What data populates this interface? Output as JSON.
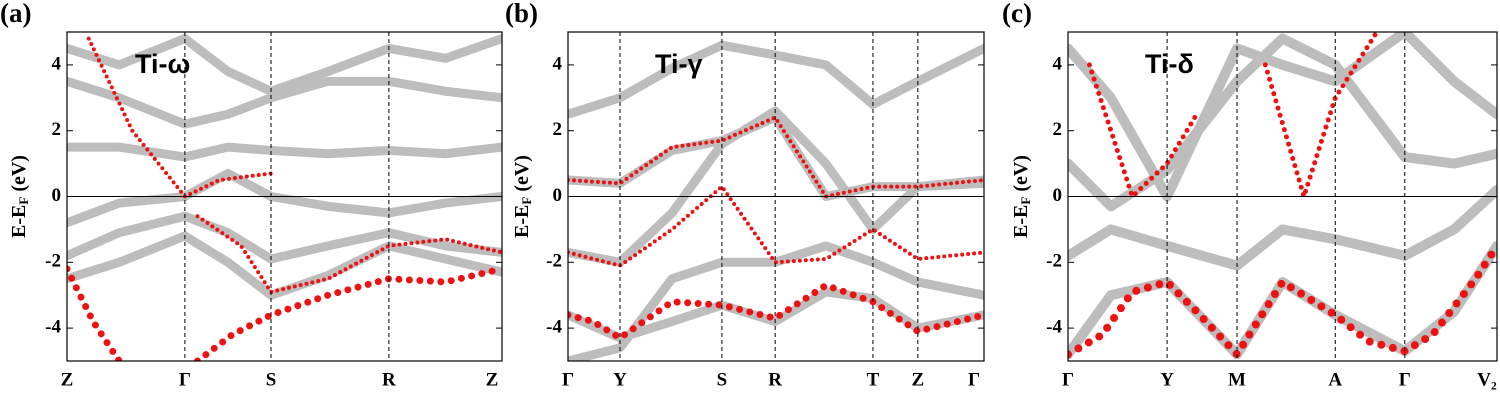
{
  "chart_data": [
    {
      "type": "line",
      "panel_label": "(a)",
      "title": "Ti-ω",
      "ylabel": {
        "main": "E-E",
        "sub": "F",
        "unit": " (eV)"
      },
      "xlim": [
        0,
        1
      ],
      "xticks": [
        {
          "value": 0,
          "label": "Z"
        },
        {
          "value": 0.271,
          "label": "Γ"
        },
        {
          "value": 0.469,
          "label": "S"
        },
        {
          "value": 0.74,
          "label": "R"
        },
        {
          "value": 1,
          "label": "Z"
        }
      ],
      "ylim": [
        -5,
        5
      ],
      "yticks": [
        -4,
        -2,
        0,
        2,
        4
      ],
      "hline": 0,
      "bands": [
        {
          "style": "line",
          "color": "#bdbdbd",
          "width": 9,
          "x": [
            0,
            0.12,
            0.271,
            0.37,
            0.469,
            0.6,
            0.74,
            0.87,
            1
          ],
          "y": [
            -2.5,
            -2.0,
            -1.2,
            -2.0,
            -3.0,
            -2.4,
            -1.5,
            -1.9,
            -2.3
          ]
        },
        {
          "style": "line",
          "color": "#bdbdbd",
          "width": 9,
          "x": [
            0,
            0.12,
            0.271,
            0.37,
            0.469,
            0.6,
            0.74,
            0.87,
            1
          ],
          "y": [
            -1.8,
            -1.1,
            -0.6,
            -1.1,
            -1.9,
            -1.5,
            -1.1,
            -1.5,
            -1.7
          ]
        },
        {
          "style": "line",
          "color": "#bdbdbd",
          "width": 9,
          "x": [
            0,
            0.12,
            0.271,
            0.37,
            0.469,
            0.6,
            0.74,
            0.87,
            1
          ],
          "y": [
            -0.8,
            -0.2,
            0.0,
            0.7,
            0.0,
            -0.3,
            -0.5,
            -0.2,
            0.0
          ]
        },
        {
          "style": "line",
          "color": "#bdbdbd",
          "width": 9,
          "x": [
            0,
            0.12,
            0.271,
            0.37,
            0.469,
            0.6,
            0.74,
            0.87,
            1
          ],
          "y": [
            1.5,
            1.5,
            1.2,
            1.5,
            1.4,
            1.3,
            1.4,
            1.3,
            1.5
          ]
        },
        {
          "style": "line",
          "color": "#bdbdbd",
          "width": 9,
          "x": [
            0,
            0.12,
            0.271,
            0.37,
            0.469,
            0.6,
            0.74,
            0.87,
            1
          ],
          "y": [
            3.5,
            3.0,
            2.2,
            2.5,
            3.0,
            3.5,
            3.5,
            3.2,
            3.0
          ]
        },
        {
          "style": "line",
          "color": "#bdbdbd",
          "width": 9,
          "x": [
            0,
            0.12,
            0.271,
            0.37,
            0.469,
            0.6,
            0.74,
            0.87,
            1
          ],
          "y": [
            4.5,
            4.0,
            4.8,
            3.8,
            3.2,
            3.8,
            4.5,
            4.2,
            4.8
          ]
        },
        {
          "style": "dots",
          "color": "#ee1111",
          "width": 7,
          "x": [
            0,
            0.06,
            0.12
          ],
          "y": [
            -2.2,
            -3.8,
            -5
          ]
        },
        {
          "style": "dots",
          "color": "#ee1111",
          "width": 7,
          "x": [
            0.3,
            0.38,
            0.469,
            0.6,
            0.74,
            0.87,
            1
          ],
          "y": [
            -5,
            -4.2,
            -3.6,
            -3.0,
            -2.5,
            -2.6,
            -2.2
          ]
        },
        {
          "style": "dots",
          "color": "#ee1111",
          "width": 4,
          "x": [
            0.05,
            0.15,
            0.271,
            0.35,
            0.469
          ],
          "y": [
            4.8,
            2.0,
            0.0,
            0.5,
            0.7
          ]
        },
        {
          "style": "dots",
          "color": "#ee1111",
          "width": 4,
          "x": [
            0.3,
            0.4,
            0.469,
            0.6,
            0.74,
            0.87,
            1
          ],
          "y": [
            -0.6,
            -1.5,
            -2.9,
            -2.5,
            -1.5,
            -1.3,
            -1.7
          ]
        }
      ]
    },
    {
      "type": "line",
      "panel_label": "(b)",
      "title": "Ti-γ",
      "ylabel": {
        "main": "E-E",
        "sub": "F",
        "unit": " (eV)"
      },
      "xlim": [
        0,
        1
      ],
      "xticks": [
        {
          "value": 0,
          "label": "Γ"
        },
        {
          "value": 0.125,
          "label": "Y"
        },
        {
          "value": 0.37,
          "label": "S"
        },
        {
          "value": 0.498,
          "label": "R"
        },
        {
          "value": 0.733,
          "label": "T"
        },
        {
          "value": 0.841,
          "label": "Z"
        },
        {
          "value": 1,
          "label": "Γ"
        }
      ],
      "ylim": [
        -5,
        5
      ],
      "yticks": [
        -4,
        -2,
        0,
        2,
        4
      ],
      "hline": 0,
      "bands": [
        {
          "style": "line",
          "color": "#bdbdbd",
          "width": 9,
          "x": [
            0,
            0.125,
            0.25,
            0.37,
            0.498,
            0.62,
            0.733,
            0.841,
            1
          ],
          "y": [
            -1.7,
            -2.0,
            -0.5,
            1.6,
            2.6,
            1.0,
            -1.0,
            0.3,
            0.5
          ]
        },
        {
          "style": "line",
          "color": "#bdbdbd",
          "width": 9,
          "x": [
            0,
            0.125,
            0.25,
            0.37,
            0.498,
            0.62,
            0.733,
            0.841,
            1
          ],
          "y": [
            -3.6,
            -4.3,
            -3.8,
            -3.3,
            -3.8,
            -2.9,
            -3.1,
            -4.0,
            -3.6
          ]
        },
        {
          "style": "line",
          "color": "#bdbdbd",
          "width": 9,
          "x": [
            0,
            0.125,
            0.25,
            0.37,
            0.498,
            0.62,
            0.733,
            0.841,
            1
          ],
          "y": [
            0.5,
            0.4,
            1.4,
            1.7,
            2.4,
            0.0,
            0.3,
            0.3,
            0.4
          ]
        },
        {
          "style": "line",
          "color": "#bdbdbd",
          "width": 9,
          "x": [
            0,
            0.125,
            0.25,
            0.37,
            0.498,
            0.62,
            0.733,
            0.841,
            1
          ],
          "y": [
            2.5,
            3.0,
            3.9,
            4.6,
            4.3,
            4.0,
            2.8,
            3.5,
            4.5
          ]
        },
        {
          "style": "line",
          "color": "#bdbdbd",
          "width": 9,
          "x": [
            0,
            0.125,
            0.25,
            0.37,
            0.498,
            0.62,
            0.733,
            0.841,
            1
          ],
          "y": [
            -5,
            -4.6,
            -2.5,
            -2.0,
            -2.0,
            -1.5,
            -2.0,
            -2.6,
            -3.0
          ]
        },
        {
          "style": "dots",
          "color": "#ee1111",
          "width": 7,
          "x": [
            0,
            0.06,
            0.125,
            0.25,
            0.37,
            0.498,
            0.62,
            0.733,
            0.841,
            1
          ],
          "y": [
            -3.6,
            -3.8,
            -4.3,
            -3.2,
            -3.3,
            -3.7,
            -2.7,
            -3.2,
            -4.1,
            -3.6
          ]
        },
        {
          "style": "dots",
          "color": "#ee1111",
          "width": 4,
          "x": [
            0,
            0.125,
            0.25,
            0.37,
            0.498,
            0.62,
            0.733,
            0.841,
            1
          ],
          "y": [
            -1.7,
            -2.1,
            -1.0,
            0.3,
            -2.0,
            -1.9,
            -1.0,
            -1.9,
            -1.7
          ]
        },
        {
          "style": "dots",
          "color": "#ee1111",
          "width": 4,
          "x": [
            0,
            0.125,
            0.25,
            0.37,
            0.498,
            0.62,
            0.733,
            0.841,
            1
          ],
          "y": [
            0.5,
            0.4,
            1.5,
            1.7,
            2.4,
            0.0,
            0.3,
            0.3,
            0.5
          ]
        }
      ]
    },
    {
      "type": "line",
      "panel_label": "(c)",
      "title": "Ti-δ",
      "ylabel": {
        "main": "E-E",
        "sub": "F",
        "unit": " (eV)"
      },
      "xlim": [
        0,
        1
      ],
      "xticks": [
        {
          "value": 0,
          "label": "Γ"
        },
        {
          "value": 0.231,
          "label": "Y"
        },
        {
          "value": 0.394,
          "label": "M"
        },
        {
          "value": 0.623,
          "label": "A"
        },
        {
          "value": 0.785,
          "label": "Γ"
        },
        {
          "value": 1,
          "label": "V₂"
        }
      ],
      "ylim": [
        -5,
        5
      ],
      "yticks": [
        -4,
        -2,
        0,
        2,
        4
      ],
      "hline": 0,
      "bands": [
        {
          "style": "line",
          "color": "#bdbdbd",
          "width": 10,
          "x": [
            0,
            0.1,
            0.231,
            0.394,
            0.5,
            0.623,
            0.785,
            0.9,
            1
          ],
          "y": [
            -1.8,
            -1.0,
            -1.5,
            -2.1,
            -1.0,
            -1.3,
            -1.8,
            -1.0,
            0.2
          ]
        },
        {
          "style": "line",
          "color": "#bdbdbd",
          "width": 10,
          "x": [
            0,
            0.1,
            0.231,
            0.394,
            0.5,
            0.623,
            0.785,
            0.9,
            1
          ],
          "y": [
            1.0,
            -0.3,
            0.8,
            3.5,
            4.8,
            4.0,
            1.2,
            1.0,
            1.3
          ]
        },
        {
          "style": "line",
          "color": "#bdbdbd",
          "width": 10,
          "x": [
            0,
            0.1,
            0.231,
            0.394,
            0.5,
            0.623,
            0.785,
            0.9,
            1
          ],
          "y": [
            4.5,
            3.0,
            0.0,
            4.5,
            4.0,
            3.5,
            5.0,
            3.5,
            2.5
          ]
        },
        {
          "style": "line",
          "color": "#bdbdbd",
          "width": 10,
          "x": [
            0,
            0.1,
            0.231,
            0.394,
            0.5,
            0.623,
            0.785,
            0.9,
            1
          ],
          "y": [
            -4.8,
            -3.0,
            -2.6,
            -4.8,
            -2.6,
            -3.6,
            -4.7,
            -3.5,
            -1.5
          ]
        },
        {
          "style": "dots",
          "color": "#ee1111",
          "width": 8,
          "x": [
            0,
            0.08,
            0.15,
            0.231,
            0.3,
            0.394,
            0.5,
            0.623,
            0.7,
            0.785,
            0.85,
            0.95,
            1
          ],
          "y": [
            -4.8,
            -4.2,
            -2.9,
            -2.6,
            -3.5,
            -4.8,
            -2.6,
            -3.6,
            -4.4,
            -4.7,
            -4.2,
            -2.5,
            -1.5
          ]
        },
        {
          "style": "dots",
          "color": "#ee1111",
          "width": 5,
          "x": [
            0.05,
            0.15,
            0.231,
            0.3
          ],
          "y": [
            4.0,
            0.0,
            1.0,
            2.5
          ]
        },
        {
          "style": "dots",
          "color": "#ee1111",
          "width": 5,
          "x": [
            0.46,
            0.55,
            0.623,
            0.72
          ],
          "y": [
            4.0,
            0.0,
            3.0,
            5.0
          ]
        }
      ]
    }
  ]
}
